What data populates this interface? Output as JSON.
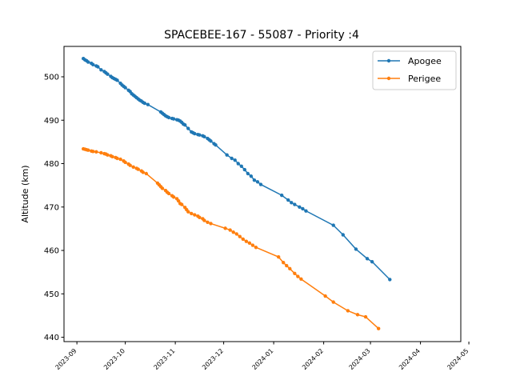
{
  "chart_data": {
    "type": "line",
    "title": "SPACEBEE-167 - 55087 - Priority :4",
    "xlabel": "",
    "ylabel": "Altitude (km)",
    "xlim": [
      "2023-08-24",
      "2024-04-26"
    ],
    "ylim": [
      439,
      507
    ],
    "x_ticks": [
      "2023-09",
      "2023-10",
      "2023-11",
      "2023-12",
      "2024-01",
      "2024-02",
      "2024-03",
      "2024-04",
      "2024-05"
    ],
    "x_tick_dates": [
      "2023-09-01",
      "2023-10-01",
      "2023-11-01",
      "2023-12-01",
      "2024-01-01",
      "2024-02-01",
      "2024-03-01",
      "2024-04-01",
      "2024-05-01"
    ],
    "y_ticks": [
      440,
      450,
      460,
      470,
      480,
      490,
      500
    ],
    "grid": false,
    "legend_position": "top-right",
    "series": [
      {
        "name": "Apogee",
        "color": "#1f77b4",
        "points": [
          [
            "2023-09-05",
            504.2
          ],
          [
            "2023-09-06",
            503.9
          ],
          [
            "2023-09-07",
            503.7
          ],
          [
            "2023-09-08",
            503.4
          ],
          [
            "2023-09-10",
            503.1
          ],
          [
            "2023-09-11",
            502.8
          ],
          [
            "2023-09-13",
            502.5
          ],
          [
            "2023-09-14",
            502.3
          ],
          [
            "2023-09-16",
            501.6
          ],
          [
            "2023-09-18",
            501.2
          ],
          [
            "2023-09-19",
            500.9
          ],
          [
            "2023-09-20",
            500.6
          ],
          [
            "2023-09-22",
            500.1
          ],
          [
            "2023-09-23",
            499.8
          ],
          [
            "2023-09-24",
            499.6
          ],
          [
            "2023-09-25",
            499.4
          ],
          [
            "2023-09-26",
            499.2
          ],
          [
            "2023-09-28",
            498.5
          ],
          [
            "2023-09-29",
            498.1
          ],
          [
            "2023-09-30",
            497.8
          ],
          [
            "2023-10-01",
            497.5
          ],
          [
            "2023-10-03",
            496.9
          ],
          [
            "2023-10-04",
            496.6
          ],
          [
            "2023-10-05",
            496.1
          ],
          [
            "2023-10-06",
            495.8
          ],
          [
            "2023-10-07",
            495.5
          ],
          [
            "2023-10-08",
            495.2
          ],
          [
            "2023-10-09",
            494.9
          ],
          [
            "2023-10-10",
            494.6
          ],
          [
            "2023-10-11",
            494.4
          ],
          [
            "2023-10-12",
            494.1
          ],
          [
            "2023-10-13",
            493.9
          ],
          [
            "2023-10-15",
            493.6
          ],
          [
            "2023-10-23",
            491.9
          ],
          [
            "2023-10-24",
            491.6
          ],
          [
            "2023-10-25",
            491.3
          ],
          [
            "2023-10-26",
            491.0
          ],
          [
            "2023-10-27",
            490.8
          ],
          [
            "2023-10-28",
            490.6
          ],
          [
            "2023-10-30",
            490.4
          ],
          [
            "2023-10-31",
            490.3
          ],
          [
            "2023-11-02",
            490.1
          ],
          [
            "2023-11-03",
            490.0
          ],
          [
            "2023-11-04",
            489.8
          ],
          [
            "2023-11-05",
            489.5
          ],
          [
            "2023-11-06",
            489.1
          ],
          [
            "2023-11-07",
            488.9
          ],
          [
            "2023-11-09",
            488.1
          ],
          [
            "2023-11-11",
            487.3
          ],
          [
            "2023-11-12",
            487.1
          ],
          [
            "2023-11-13",
            486.9
          ],
          [
            "2023-11-15",
            486.7
          ],
          [
            "2023-11-16",
            486.6
          ],
          [
            "2023-11-18",
            486.4
          ],
          [
            "2023-11-19",
            486.2
          ],
          [
            "2023-11-21",
            485.8
          ],
          [
            "2023-11-22",
            485.5
          ],
          [
            "2023-11-23",
            485.2
          ],
          [
            "2023-11-25",
            484.6
          ],
          [
            "2023-11-26",
            484.3
          ],
          [
            "2023-12-03",
            482.0
          ],
          [
            "2023-12-06",
            481.2
          ],
          [
            "2023-12-08",
            480.8
          ],
          [
            "2023-12-10",
            480.0
          ],
          [
            "2023-12-12",
            479.4
          ],
          [
            "2023-12-14",
            478.6
          ],
          [
            "2023-12-16",
            477.7
          ],
          [
            "2023-12-18",
            477.1
          ],
          [
            "2023-12-20",
            476.2
          ],
          [
            "2023-12-22",
            475.8
          ],
          [
            "2023-12-24",
            475.2
          ],
          [
            "2024-01-06",
            472.7
          ],
          [
            "2024-01-10",
            471.6
          ],
          [
            "2024-01-12",
            471.0
          ],
          [
            "2024-01-14",
            470.6
          ],
          [
            "2024-01-17",
            470.0
          ],
          [
            "2024-01-19",
            469.6
          ],
          [
            "2024-01-21",
            469.1
          ],
          [
            "2024-02-07",
            465.8
          ],
          [
            "2024-02-13",
            463.6
          ],
          [
            "2024-02-21",
            460.3
          ],
          [
            "2024-02-28",
            458.1
          ],
          [
            "2024-03-02",
            457.4
          ],
          [
            "2024-03-13",
            453.3
          ]
        ]
      },
      {
        "name": "Perigee",
        "color": "#ff7f0e",
        "points": [
          [
            "2023-09-05",
            483.4
          ],
          [
            "2023-09-06",
            483.3
          ],
          [
            "2023-09-07",
            483.2
          ],
          [
            "2023-09-08",
            483.1
          ],
          [
            "2023-09-10",
            482.9
          ],
          [
            "2023-09-11",
            482.8
          ],
          [
            "2023-09-13",
            482.7
          ],
          [
            "2023-09-16",
            482.5
          ],
          [
            "2023-09-18",
            482.3
          ],
          [
            "2023-09-19",
            482.2
          ],
          [
            "2023-09-20",
            482.0
          ],
          [
            "2023-09-22",
            481.8
          ],
          [
            "2023-09-23",
            481.6
          ],
          [
            "2023-09-25",
            481.4
          ],
          [
            "2023-09-26",
            481.2
          ],
          [
            "2023-09-28",
            481.0
          ],
          [
            "2023-09-30",
            480.6
          ],
          [
            "2023-10-01",
            480.3
          ],
          [
            "2023-10-03",
            479.9
          ],
          [
            "2023-10-04",
            479.6
          ],
          [
            "2023-10-06",
            479.2
          ],
          [
            "2023-10-08",
            478.9
          ],
          [
            "2023-10-09",
            478.7
          ],
          [
            "2023-10-11",
            478.3
          ],
          [
            "2023-10-12",
            478.0
          ],
          [
            "2023-10-14",
            477.7
          ],
          [
            "2023-10-21",
            475.5
          ],
          [
            "2023-10-22",
            475.1
          ],
          [
            "2023-10-23",
            474.7
          ],
          [
            "2023-10-24",
            474.3
          ],
          [
            "2023-10-26",
            473.8
          ],
          [
            "2023-10-27",
            473.4
          ],
          [
            "2023-10-28",
            473.1
          ],
          [
            "2023-10-30",
            472.6
          ],
          [
            "2023-10-31",
            472.3
          ],
          [
            "2023-11-02",
            471.9
          ],
          [
            "2023-11-03",
            471.4
          ],
          [
            "2023-11-04",
            470.8
          ],
          [
            "2023-11-05",
            470.6
          ],
          [
            "2023-11-07",
            469.9
          ],
          [
            "2023-11-08",
            469.4
          ],
          [
            "2023-11-09",
            468.9
          ],
          [
            "2023-11-11",
            468.5
          ],
          [
            "2023-11-13",
            468.2
          ],
          [
            "2023-11-15",
            467.9
          ],
          [
            "2023-11-16",
            467.6
          ],
          [
            "2023-11-18",
            467.3
          ],
          [
            "2023-11-19",
            466.9
          ],
          [
            "2023-11-21",
            466.5
          ],
          [
            "2023-11-23",
            466.2
          ],
          [
            "2023-12-02",
            465.1
          ],
          [
            "2023-12-05",
            464.7
          ],
          [
            "2023-12-07",
            464.2
          ],
          [
            "2023-12-09",
            463.8
          ],
          [
            "2023-12-11",
            463.2
          ],
          [
            "2023-12-13",
            462.6
          ],
          [
            "2023-12-15",
            462.1
          ],
          [
            "2023-12-17",
            461.7
          ],
          [
            "2023-12-19",
            461.2
          ],
          [
            "2023-12-21",
            460.7
          ],
          [
            "2024-01-04",
            458.5
          ],
          [
            "2024-01-07",
            457.2
          ],
          [
            "2024-01-09",
            456.5
          ],
          [
            "2024-01-11",
            455.8
          ],
          [
            "2024-01-14",
            454.7
          ],
          [
            "2024-01-16",
            454.0
          ],
          [
            "2024-01-18",
            453.4
          ],
          [
            "2024-02-02",
            449.5
          ],
          [
            "2024-02-07",
            448.1
          ],
          [
            "2024-02-16",
            446.1
          ],
          [
            "2024-02-22",
            445.2
          ],
          [
            "2024-02-27",
            444.7
          ],
          [
            "2024-03-06",
            442.0
          ]
        ]
      }
    ]
  }
}
